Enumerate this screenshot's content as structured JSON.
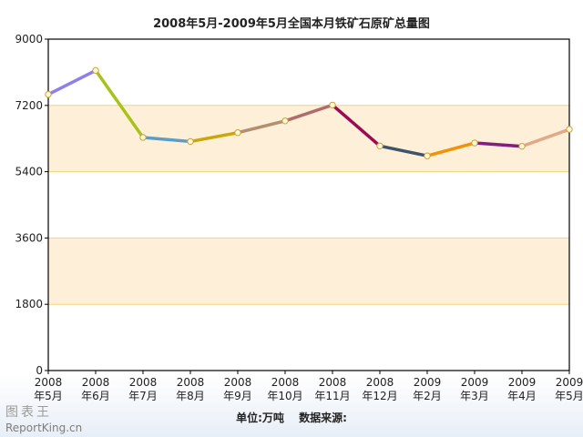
{
  "chart_data": {
    "type": "line",
    "title": "2008年5月-2009年5月全国本月铁矿石原矿总量图",
    "categories": [
      [
        "2008",
        "年5月"
      ],
      [
        "2008",
        "年6月"
      ],
      [
        "2008",
        "年7月"
      ],
      [
        "2008",
        "年8月"
      ],
      [
        "2008",
        "年9月"
      ],
      [
        "2008",
        "年10月"
      ],
      [
        "2008",
        "年11月"
      ],
      [
        "2008",
        "年12月"
      ],
      [
        "2009",
        "年2月"
      ],
      [
        "2009",
        "年3月"
      ],
      [
        "2009",
        "年4月"
      ],
      [
        "2009",
        "年5月"
      ]
    ],
    "values": [
      7500,
      8150,
      6330,
      6220,
      6460,
      6780,
      7210,
      6100,
      5830,
      6180,
      6090,
      6550
    ],
    "segment_colors": [
      "#8f7fe8",
      "#a8c21b",
      "#5b9dc7",
      "#c9a60a",
      "#b48f6e",
      "#b06c6c",
      "#9c0a55",
      "#3f546a",
      "#f29208",
      "#7f1f7f",
      "#e0a98c",
      "#1aa5d0"
    ],
    "ylim": [
      0,
      9000
    ],
    "yticks": [
      0,
      1800,
      3600,
      5400,
      7200,
      9000
    ],
    "band_color": "#fdefd8",
    "grid": true,
    "xlabel": "",
    "ylabel": ""
  },
  "footer": {
    "unit": "单位:万吨",
    "source": "数据来源:"
  },
  "watermark": {
    "cn": "图表王",
    "en": "ReportKing.cn"
  }
}
